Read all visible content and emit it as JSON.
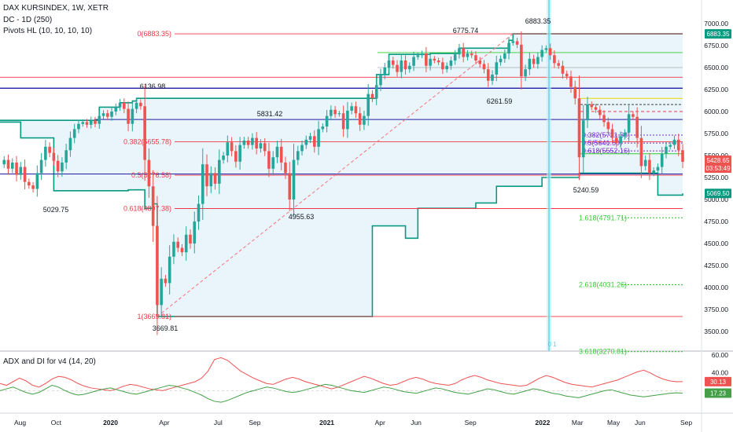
{
  "header": {
    "symbol_line": "DAX KURSINDEX, 1W, XETR",
    "indicator_1": "DC - 1D (250)",
    "indicator_2": "Pivots HL (10, 10, 10, 10)",
    "sub_title": "ADX and DI for v4 (14, 20)"
  },
  "colors": {
    "up": "#26a69a",
    "down": "#ef5350",
    "channel": "#089981",
    "fib": "#f23645",
    "pivot_blue": "#1e1ea8",
    "ext": "#33cc33",
    "diag": "#f4727a",
    "cyan": "#5bd0e8",
    "adx_red": "#f05252",
    "adx_green": "#43a047"
  },
  "price_badges": {
    "top": "6883.35",
    "last": "5428.65",
    "countdown": "03:53:49",
    "channel_low": "5069.50",
    "adx_red": "30.13",
    "adx_green": "17.23"
  },
  "marker": "0 1",
  "chart_data": [
    {
      "type": "candlestick",
      "y_range": [
        3500,
        7000
      ],
      "x_range": [
        "2019-06-28",
        "2022-08-26"
      ],
      "y_ticks": [
        "7000.00",
        "6750.00",
        "6500.00",
        "6250.00",
        "6000.00",
        "5750.00",
        "5500.00",
        "5250.00",
        "5000.00",
        "4750.00",
        "4500.00",
        "4250.00",
        "4000.00",
        "3750.00",
        "3500.00"
      ],
      "x_ticks": [
        "Aug",
        "Oct",
        "2020",
        "Apr",
        "Jul",
        "Sep",
        "2021",
        "Apr",
        "Jun",
        "Sep",
        "2022",
        "Mar",
        "May",
        "Jun",
        "Sep"
      ],
      "x_tick_dates": [
        "2019-08-01",
        "2019-10-01",
        "2020-01-01",
        "2020-04-01",
        "2020-07-01",
        "2020-09-01",
        "2021-01-01",
        "2021-04-01",
        "2021-06-01",
        "2021-09-01",
        "2022-01-01",
        "2022-03-01",
        "2022-05-01",
        "2022-06-15",
        "2022-09-01"
      ],
      "close_path": [
        [
          "2019-06-28",
          5400
        ],
        [
          "2019-07-05",
          5450
        ],
        [
          "2019-07-12",
          5350
        ],
        [
          "2019-07-19",
          5420
        ],
        [
          "2019-07-26",
          5280
        ],
        [
          "2019-08-02",
          5370
        ],
        [
          "2019-08-09",
          5200
        ],
        [
          "2019-08-16",
          5160
        ],
        [
          "2019-08-23",
          5120
        ],
        [
          "2019-08-30",
          5300
        ],
        [
          "2019-09-06",
          5450
        ],
        [
          "2019-09-13",
          5600
        ],
        [
          "2019-09-20",
          5530
        ],
        [
          "2019-09-27",
          5440
        ],
        [
          "2019-10-04",
          5320
        ],
        [
          "2019-10-11",
          5420
        ],
        [
          "2019-10-18",
          5560
        ],
        [
          "2019-10-25",
          5700
        ],
        [
          "2019-11-01",
          5800
        ],
        [
          "2019-11-08",
          5860
        ],
        [
          "2019-11-15",
          5880
        ],
        [
          "2019-11-22",
          5850
        ],
        [
          "2019-11-29",
          5900
        ],
        [
          "2019-12-06",
          5860
        ],
        [
          "2019-12-13",
          5950
        ],
        [
          "2019-12-20",
          5980
        ],
        [
          "2019-12-27",
          5940
        ],
        [
          "2020-01-03",
          6000
        ],
        [
          "2020-01-10",
          6050
        ],
        [
          "2020-01-17",
          6100
        ],
        [
          "2020-01-24",
          6030
        ],
        [
          "2020-01-31",
          5860
        ],
        [
          "2020-02-07",
          6030
        ],
        [
          "2020-02-14",
          6100
        ],
        [
          "2020-02-21",
          6060
        ],
        [
          "2020-02-28",
          5450
        ],
        [
          "2020-03-06",
          5150
        ],
        [
          "2020-03-13",
          4700
        ],
        [
          "2020-03-20",
          3800
        ],
        [
          "2020-03-27",
          4100
        ],
        [
          "2020-04-03",
          4050
        ],
        [
          "2020-04-10",
          4350
        ],
        [
          "2020-04-17",
          4520
        ],
        [
          "2020-04-24",
          4450
        ],
        [
          "2020-05-01",
          4400
        ],
        [
          "2020-05-08",
          4600
        ],
        [
          "2020-05-15",
          4500
        ],
        [
          "2020-05-22",
          4750
        ],
        [
          "2020-05-29",
          4950
        ],
        [
          "2020-06-05",
          5400
        ],
        [
          "2020-06-12",
          5150
        ],
        [
          "2020-06-19",
          5300
        ],
        [
          "2020-06-26",
          5180
        ],
        [
          "2020-07-03",
          5450
        ],
        [
          "2020-07-10",
          5500
        ],
        [
          "2020-07-17",
          5650
        ],
        [
          "2020-07-24",
          5550
        ],
        [
          "2020-07-31",
          5430
        ],
        [
          "2020-08-07",
          5620
        ],
        [
          "2020-08-14",
          5670
        ],
        [
          "2020-08-21",
          5620
        ],
        [
          "2020-08-28",
          5700
        ],
        [
          "2020-09-04",
          5580
        ],
        [
          "2020-09-11",
          5640
        ],
        [
          "2020-09-18",
          5550
        ],
        [
          "2020-09-25",
          5350
        ],
        [
          "2020-10-02",
          5480
        ],
        [
          "2020-10-09",
          5600
        ],
        [
          "2020-10-16",
          5420
        ],
        [
          "2020-10-23",
          5300
        ],
        [
          "2020-10-30",
          5000
        ],
        [
          "2020-11-06",
          5450
        ],
        [
          "2020-11-13",
          5550
        ],
        [
          "2020-11-20",
          5620
        ],
        [
          "2020-11-27",
          5680
        ],
        [
          "2020-12-04",
          5720
        ],
        [
          "2020-12-11",
          5600
        ],
        [
          "2020-12-18",
          5800
        ],
        [
          "2020-12-25",
          5830
        ],
        [
          "2021-01-01",
          5950
        ],
        [
          "2021-01-08",
          6020
        ],
        [
          "2021-01-15",
          5970
        ],
        [
          "2021-01-22",
          5980
        ],
        [
          "2021-01-29",
          5800
        ],
        [
          "2021-02-05",
          6010
        ],
        [
          "2021-02-12",
          6060
        ],
        [
          "2021-02-19",
          5980
        ],
        [
          "2021-02-26",
          5850
        ],
        [
          "2021-03-05",
          5950
        ],
        [
          "2021-03-12",
          6200
        ],
        [
          "2021-03-19",
          6150
        ],
        [
          "2021-03-26",
          6300
        ],
        [
          "2021-04-02",
          6420
        ],
        [
          "2021-04-09",
          6500
        ],
        [
          "2021-04-16",
          6580
        ],
        [
          "2021-04-23",
          6530
        ],
        [
          "2021-04-30",
          6450
        ],
        [
          "2021-05-07",
          6580
        ],
        [
          "2021-05-14",
          6480
        ],
        [
          "2021-05-21",
          6520
        ],
        [
          "2021-05-28",
          6620
        ],
        [
          "2021-06-04",
          6640
        ],
        [
          "2021-06-11",
          6660
        ],
        [
          "2021-06-18",
          6520
        ],
        [
          "2021-06-25",
          6600
        ],
        [
          "2021-07-02",
          6580
        ],
        [
          "2021-07-09",
          6560
        ],
        [
          "2021-07-16",
          6480
        ],
        [
          "2021-07-23",
          6520
        ],
        [
          "2021-07-30",
          6580
        ],
        [
          "2021-08-06",
          6650
        ],
        [
          "2021-08-13",
          6720
        ],
        [
          "2021-08-20",
          6620
        ],
        [
          "2021-08-27",
          6660
        ],
        [
          "2021-09-03",
          6640
        ],
        [
          "2021-09-10",
          6580
        ],
        [
          "2021-09-17",
          6540
        ],
        [
          "2021-09-24",
          6480
        ],
        [
          "2021-10-01",
          6350
        ],
        [
          "2021-10-08",
          6420
        ],
        [
          "2021-10-15",
          6560
        ],
        [
          "2021-10-22",
          6600
        ],
        [
          "2021-10-29",
          6660
        ],
        [
          "2021-11-05",
          6780
        ],
        [
          "2021-11-12",
          6800
        ],
        [
          "2021-11-19",
          6760
        ],
        [
          "2021-11-26",
          6400
        ],
        [
          "2021-12-03",
          6480
        ],
        [
          "2021-12-10",
          6600
        ],
        [
          "2021-12-17",
          6540
        ],
        [
          "2021-12-24",
          6620
        ],
        [
          "2021-12-31",
          6700
        ],
        [
          "2022-01-07",
          6720
        ],
        [
          "2022-01-14",
          6640
        ],
        [
          "2022-01-21",
          6550
        ],
        [
          "2022-01-28",
          6520
        ],
        [
          "2022-02-04",
          6430
        ],
        [
          "2022-02-11",
          6400
        ],
        [
          "2022-02-18",
          6280
        ],
        [
          "2022-02-25",
          6150
        ],
        [
          "2022-03-04",
          5480
        ],
        [
          "2022-03-11",
          5900
        ],
        [
          "2022-03-18",
          6080
        ],
        [
          "2022-03-25",
          6050
        ],
        [
          "2022-04-01",
          6020
        ],
        [
          "2022-04-08",
          5960
        ],
        [
          "2022-04-15",
          5880
        ],
        [
          "2022-04-22",
          5800
        ],
        [
          "2022-04-29",
          5700
        ],
        [
          "2022-05-06",
          5640
        ],
        [
          "2022-05-13",
          5720
        ],
        [
          "2022-05-20",
          5760
        ],
        [
          "2022-05-27",
          5970
        ],
        [
          "2022-06-03",
          5940
        ],
        [
          "2022-06-10",
          5700
        ],
        [
          "2022-06-17",
          5380
        ],
        [
          "2022-06-24",
          5450
        ],
        [
          "2022-07-01",
          5300
        ],
        [
          "2022-07-08",
          5330
        ],
        [
          "2022-07-15",
          5370
        ],
        [
          "2022-07-22",
          5520
        ],
        [
          "2022-07-29",
          5600
        ],
        [
          "2022-08-05",
          5620
        ],
        [
          "2022-08-12",
          5680
        ],
        [
          "2022-08-19",
          5560
        ],
        [
          "2022-08-26",
          5428.65
        ]
      ],
      "donchian_upper": [
        [
          "2019-06-28",
          5900
        ],
        [
          "2019-12-06",
          5900
        ],
        [
          "2019-12-13",
          6050
        ],
        [
          "2020-01-17",
          6100
        ],
        [
          "2020-02-07",
          6120
        ],
        [
          "2020-02-14",
          6150
        ],
        [
          "2021-03-26",
          6150
        ],
        [
          "2021-03-26",
          6420
        ],
        [
          "2021-04-16",
          6650
        ],
        [
          "2021-06-25",
          6660
        ],
        [
          "2021-08-13",
          6720
        ],
        [
          "2021-11-05",
          6810
        ],
        [
          "2021-11-12",
          6883.35
        ],
        [
          "2022-08-26",
          6883.35
        ]
      ],
      "donchian_lower": [
        [
          "2019-06-28",
          5880
        ],
        [
          "2019-08-02",
          5700
        ],
        [
          "2019-09-27",
          5100
        ],
        [
          "2020-01-31",
          5110
        ],
        [
          "2020-02-28",
          4900
        ],
        [
          "2020-03-13",
          4950
        ],
        [
          "2020-03-20",
          3669.81
        ],
        [
          "2021-03-05",
          3669.81
        ],
        [
          "2021-03-19",
          4700
        ],
        [
          "2021-05-14",
          4560
        ],
        [
          "2021-06-04",
          4900
        ],
        [
          "2021-09-10",
          4960
        ],
        [
          "2021-10-15",
          5150
        ],
        [
          "2021-12-31",
          5250
        ],
        [
          "2022-03-04",
          5300
        ],
        [
          "2022-07-15",
          5050
        ],
        [
          "2022-08-26",
          5069.5
        ]
      ],
      "pivot_labels": [
        "5029.75",
        "6136.98",
        "5831.42",
        "4955.63",
        "3669.81",
        "6775.74",
        "6883.35",
        "6261.59",
        "5240.59"
      ],
      "fib_levels": [
        {
          "label": "0(6883.35)",
          "value": 6883.35
        },
        {
          "label": "0.382(5655.78)",
          "value": 5655.78
        },
        {
          "label": "0.5(5276.58)",
          "value": 5276.58
        },
        {
          "label": "0.618(4897.38)",
          "value": 4897.38
        },
        {
          "label": "1(3669.81)",
          "value": 3669.81
        }
      ],
      "fib_extensions": [
        {
          "label": "1.618(4791.71)",
          "value": 4791.71
        },
        {
          "label": "2.618(4031.26)",
          "value": 4031.26
        },
        {
          "label": "3.618(3270.81)",
          "value": 3270.81
        }
      ],
      "fib_small": [
        {
          "label": "0.382(5731.63)",
          "value": 5731.63
        },
        {
          "label": "0.5(5641.50)",
          "value": 5641.5
        },
        {
          "label": "0.618(5552.16)",
          "value": 5552.16
        }
      ],
      "h_lines": [
        6390,
        6265,
        5910,
        5340,
        5270
      ]
    },
    {
      "type": "line",
      "title": "ADX and DI for v4 (14, 20)",
      "y_ticks": [
        "60.00",
        "40.00",
        "20.00"
      ],
      "series": [
        {
          "color": "#f05252",
          "values": [
            28,
            26,
            30,
            34,
            31,
            26,
            24,
            28,
            33,
            36,
            35,
            32,
            28,
            25,
            23,
            22,
            21,
            20,
            22,
            25,
            27,
            26,
            24,
            22,
            21,
            20,
            22,
            24,
            26,
            28,
            30,
            34,
            42,
            55,
            57,
            54,
            48,
            42,
            38,
            34,
            31,
            28,
            27,
            30,
            33,
            35,
            33,
            30,
            28,
            26,
            24,
            22,
            24,
            27,
            30,
            33,
            36,
            34,
            31,
            28,
            26,
            27,
            30,
            33,
            35,
            33,
            30,
            28,
            27,
            26,
            28,
            32,
            35,
            37,
            35,
            32,
            30,
            28,
            27,
            26,
            25,
            26,
            30,
            34,
            37,
            35,
            32,
            29,
            27,
            26,
            25,
            24,
            26,
            28,
            30,
            32,
            35,
            38,
            41,
            43,
            40,
            36,
            33,
            31,
            30,
            30.13
          ]
        },
        {
          "color": "#43a047",
          "values": [
            20,
            22,
            24,
            21,
            18,
            16,
            18,
            22,
            26,
            24,
            20,
            17,
            15,
            16,
            18,
            20,
            22,
            23,
            21,
            19,
            17,
            16,
            18,
            20,
            22,
            24,
            26,
            25,
            23,
            21,
            18,
            15,
            11,
            8,
            7,
            9,
            12,
            15,
            18,
            20,
            22,
            24,
            23,
            21,
            19,
            18,
            19,
            21,
            23,
            25,
            27,
            26,
            24,
            22,
            20,
            19,
            18,
            20,
            22,
            24,
            23,
            21,
            19,
            18,
            17,
            19,
            21,
            23,
            22,
            20,
            18,
            17,
            16,
            18,
            20,
            22,
            21,
            19,
            17,
            16,
            18,
            20,
            22,
            21,
            19,
            17,
            16,
            14,
            13,
            12,
            14,
            16,
            18,
            20,
            21,
            19,
            17,
            15,
            14,
            13,
            14,
            15,
            16,
            17,
            17.5,
            17.23
          ]
        }
      ]
    }
  ]
}
